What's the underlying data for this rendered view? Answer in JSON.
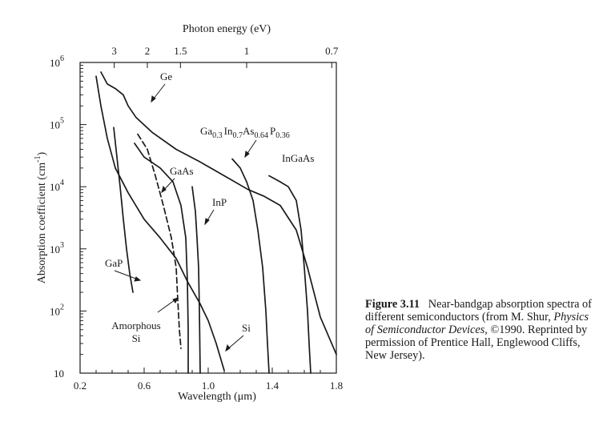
{
  "chart_data": {
    "type": "line",
    "xlabel": "Wavelength (μm)",
    "ylabel_main": "Absorption coefficient (cm",
    "ylabel_exp": "-1",
    "ylabel_close": ")",
    "top_axis_label": "Photon energy (eV)",
    "xlim": [
      0.2,
      1.8
    ],
    "ylim": [
      10,
      1000000
    ],
    "y_scale": "log",
    "x_ticks": [
      0.2,
      0.6,
      1.0,
      1.4,
      1.8
    ],
    "x_tick_labels": [
      "0.2",
      "0.6",
      "1.0",
      "1.4",
      "1.8"
    ],
    "y_ticks": [
      {
        "value": 10,
        "base": "10",
        "exp": ""
      },
      {
        "value": 100,
        "base": "10",
        "exp": "2"
      },
      {
        "value": 1000,
        "base": "10",
        "exp": "3"
      },
      {
        "value": 10000,
        "base": "10",
        "exp": "4"
      },
      {
        "value": 100000,
        "base": "10",
        "exp": "5"
      },
      {
        "value": 1000000,
        "base": "10",
        "exp": "6"
      }
    ],
    "top_ticks": [
      {
        "ev": 3,
        "label": "3"
      },
      {
        "ev": 2,
        "label": "2"
      },
      {
        "ev": 1.5,
        "label": "1.5"
      },
      {
        "ev": 1,
        "label": "1"
      },
      {
        "ev": 0.7,
        "label": "0.7"
      }
    ],
    "series": [
      {
        "name": "Ge",
        "dash": false,
        "points": [
          [
            0.33,
            700000
          ],
          [
            0.37,
            450000
          ],
          [
            0.42,
            380000
          ],
          [
            0.47,
            300000
          ],
          [
            0.5,
            200000
          ],
          [
            0.55,
            130000
          ],
          [
            0.65,
            75000
          ],
          [
            0.8,
            40000
          ],
          [
            0.95,
            25000
          ],
          [
            1.1,
            15000
          ],
          [
            1.25,
            9000
          ],
          [
            1.35,
            7000
          ],
          [
            1.45,
            5000
          ],
          [
            1.55,
            2000
          ],
          [
            1.62,
            500
          ],
          [
            1.7,
            80
          ],
          [
            1.8,
            20
          ]
        ]
      },
      {
        "name": "Si",
        "dash": false,
        "points": [
          [
            0.3,
            600000
          ],
          [
            0.33,
            200000
          ],
          [
            0.37,
            60000
          ],
          [
            0.42,
            20000
          ],
          [
            0.5,
            8000
          ],
          [
            0.6,
            3000
          ],
          [
            0.7,
            1500
          ],
          [
            0.8,
            700
          ],
          [
            0.87,
            300
          ],
          [
            0.95,
            130
          ],
          [
            1.0,
            70
          ],
          [
            1.05,
            30
          ],
          [
            1.1,
            11
          ]
        ]
      },
      {
        "name": "GaAs",
        "dash": false,
        "points": [
          [
            0.54,
            50000
          ],
          [
            0.6,
            30000
          ],
          [
            0.7,
            20000
          ],
          [
            0.78,
            12000
          ],
          [
            0.83,
            5000
          ],
          [
            0.86,
            1500
          ],
          [
            0.87,
            300
          ],
          [
            0.875,
            50
          ],
          [
            0.875,
            10
          ]
        ]
      },
      {
        "name": "InP",
        "dash": false,
        "points": [
          [
            0.9,
            10000
          ],
          [
            0.92,
            4000
          ],
          [
            0.93,
            1500
          ],
          [
            0.94,
            500
          ],
          [
            0.945,
            100
          ],
          [
            0.95,
            10
          ]
        ]
      },
      {
        "name": "GaP",
        "dash": false,
        "points": [
          [
            0.41,
            90000
          ],
          [
            0.43,
            30000
          ],
          [
            0.45,
            10000
          ],
          [
            0.47,
            3000
          ],
          [
            0.49,
            1000
          ],
          [
            0.51,
            400
          ],
          [
            0.53,
            200
          ]
        ]
      },
      {
        "name": "Amorphous Si",
        "dash": true,
        "points": [
          [
            0.56,
            70000
          ],
          [
            0.62,
            40000
          ],
          [
            0.67,
            15000
          ],
          [
            0.72,
            5000
          ],
          [
            0.77,
            1500
          ],
          [
            0.8,
            500
          ],
          [
            0.81,
            150
          ],
          [
            0.82,
            50
          ],
          [
            0.83,
            25
          ]
        ]
      },
      {
        "name": "Ga0.3In0.7As0.64P0.36",
        "dash": false,
        "points": [
          [
            1.15,
            28000
          ],
          [
            1.2,
            20000
          ],
          [
            1.24,
            12000
          ],
          [
            1.28,
            6000
          ],
          [
            1.31,
            2000
          ],
          [
            1.34,
            500
          ],
          [
            1.36,
            100
          ],
          [
            1.37,
            30
          ],
          [
            1.38,
            10
          ]
        ]
      },
      {
        "name": "InGaAs",
        "dash": false,
        "points": [
          [
            1.38,
            15000
          ],
          [
            1.45,
            12000
          ],
          [
            1.5,
            10000
          ],
          [
            1.55,
            6000
          ],
          [
            1.58,
            2000
          ],
          [
            1.6,
            500
          ],
          [
            1.62,
            100
          ],
          [
            1.63,
            30
          ],
          [
            1.64,
            10
          ]
        ]
      }
    ],
    "labels": {
      "ge": "Ge",
      "gaas": "GaAs",
      "inp": "InP",
      "gap": "GaP",
      "amorphous_line1": "Amorphous",
      "amorphous_line2": "Si",
      "si": "Si",
      "quaternary": {
        "ga": "Ga",
        "ga_sub": "0.3",
        "in": "In",
        "in_sub": "0.7",
        "as": "As",
        "as_sub": "0.64",
        "p": "P",
        "p_sub": "0.36"
      },
      "ingaas": "InGaAs"
    }
  },
  "caption": {
    "figure_number": "Figure 3.11",
    "text_part1": "Near-bandgap absorption spectra of different semiconductors (from M. Shur, ",
    "book_title": "Physics of Semiconductor Devices",
    "text_part2": ", ©1990. Reprinted by permission of Prentice Hall, Englewood Cliffs, New Jersey)."
  }
}
